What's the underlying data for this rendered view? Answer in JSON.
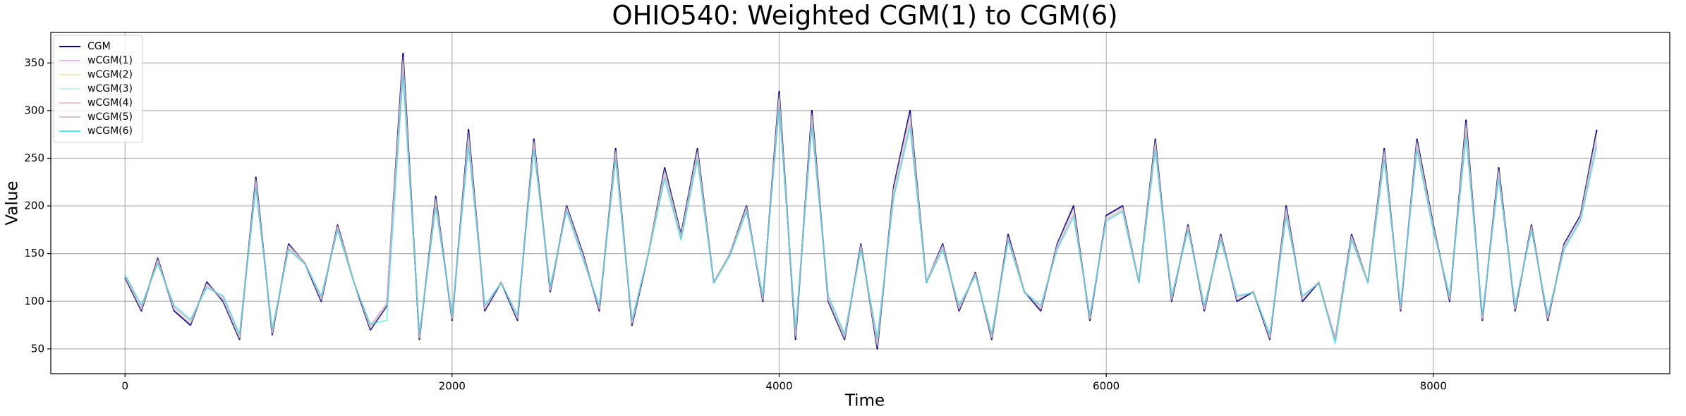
{
  "chart_data": {
    "type": "line",
    "title": "OHIO540: Weighted CGM(1) to CGM(6)",
    "xlabel": "Time",
    "ylabel": "Value",
    "x": [
      0,
      100,
      200,
      300,
      400,
      500,
      600,
      700,
      800,
      900,
      1000,
      1100,
      1200,
      1300,
      1400,
      1500,
      1600,
      1700,
      1800,
      1900,
      2000,
      2100,
      2200,
      2300,
      2400,
      2500,
      2600,
      2700,
      2800,
      2900,
      3000,
      3100,
      3200,
      3300,
      3400,
      3500,
      3600,
      3700,
      3800,
      3900,
      4000,
      4100,
      4200,
      4300,
      4400,
      4500,
      4600,
      4700,
      4800,
      4900,
      5000,
      5100,
      5200,
      5300,
      5400,
      5500,
      5600,
      5700,
      5800,
      5900,
      6000,
      6100,
      6200,
      6300,
      6400,
      6500,
      6600,
      6700,
      6800,
      6900,
      7000,
      7100,
      7200,
      7300,
      7400,
      7500,
      7600,
      7700,
      7800,
      7900,
      8000,
      8100,
      8200,
      8300,
      8400,
      8500,
      8600,
      8700,
      8800,
      8900,
      9000
    ],
    "series": [
      {
        "name": "CGM",
        "color": "#00008b",
        "values": [
          125,
          90,
          145,
          90,
          75,
          120,
          100,
          60,
          230,
          65,
          160,
          140,
          100,
          180,
          120,
          70,
          95,
          360,
          60,
          210,
          80,
          280,
          90,
          120,
          80,
          270,
          110,
          200,
          150,
          90,
          260,
          75,
          150,
          240,
          170,
          260,
          120,
          150,
          200,
          100,
          320,
          60,
          300,
          100,
          60,
          160,
          50,
          220,
          300,
          120,
          160,
          90,
          130,
          60,
          170,
          110,
          90,
          160,
          200,
          80,
          190,
          200,
          120,
          270,
          100,
          180,
          90,
          170,
          100,
          110,
          60,
          200,
          100,
          120,
          60,
          170,
          120,
          260,
          90,
          270,
          180,
          100,
          290,
          80,
          240,
          90,
          180,
          80,
          160,
          190,
          280
        ]
      },
      {
        "name": "wCGM(1)",
        "color": "#dda0dd",
        "values": [
          126,
          91,
          144,
          91,
          76,
          119,
          101,
          61,
          228,
          66,
          159,
          141,
          101,
          179,
          121,
          71,
          96,
          356,
          61,
          208,
          81,
          277,
          91,
          121,
          81,
          268,
          111,
          199,
          149,
          91,
          258,
          76,
          151,
          238,
          169,
          258,
          121,
          150,
          199,
          101,
          317,
          62,
          297,
          101,
          61,
          159,
          52,
          218,
          297,
          121,
          159,
          91,
          129,
          61,
          168,
          111,
          91,
          159,
          198,
          81,
          189,
          199,
          121,
          268,
          101,
          179,
          91,
          169,
          101,
          111,
          61,
          198,
          101,
          121,
          61,
          169,
          121,
          258,
          91,
          268,
          179,
          101,
          287,
          81,
          238,
          91,
          179,
          81,
          159,
          189,
          277
        ]
      },
      {
        "name": "wCGM(2)",
        "color": "#f0e68c",
        "values": [
          126,
          92,
          143,
          92,
          77,
          118,
          102,
          62,
          226,
          67,
          158,
          141,
          102,
          178,
          121,
          72,
          96,
          352,
          62,
          206,
          82,
          274,
          92,
          121,
          82,
          266,
          112,
          198,
          148,
          92,
          256,
          77,
          151,
          236,
          168,
          256,
          121,
          150,
          198,
          102,
          314,
          64,
          294,
          102,
          62,
          158,
          54,
          216,
          294,
          121,
          158,
          92,
          129,
          62,
          167,
          111,
          92,
          158,
          196,
          82,
          188,
          198,
          121,
          266,
          102,
          178,
          92,
          168,
          102,
          111,
          62,
          196,
          102,
          121,
          62,
          168,
          121,
          256,
          92,
          266,
          178,
          102,
          284,
          82,
          236,
          92,
          178,
          82,
          158,
          188,
          274
        ]
      },
      {
        "name": "wCGM(3)",
        "color": "#afeeee",
        "values": [
          127,
          93,
          142,
          93,
          78,
          117,
          103,
          63,
          224,
          68,
          157,
          140,
          103,
          177,
          120,
          73,
          97,
          348,
          63,
          204,
          83,
          271,
          93,
          120,
          83,
          264,
          113,
          197,
          147,
          93,
          254,
          78,
          150,
          234,
          167,
          254,
          120,
          149,
          197,
          103,
          311,
          66,
          291,
          103,
          63,
          157,
          56,
          214,
          291,
          120,
          157,
          93,
          128,
          63,
          166,
          110,
          93,
          157,
          194,
          83,
          187,
          197,
          120,
          264,
          103,
          177,
          93,
          167,
          103,
          110,
          63,
          194,
          103,
          120,
          58,
          167,
          120,
          254,
          93,
          264,
          177,
          103,
          281,
          83,
          234,
          93,
          177,
          83,
          157,
          187,
          271
        ]
      },
      {
        "name": "wCGM(4)",
        "color": "#f4a6b4",
        "values": [
          127,
          94,
          141,
          94,
          79,
          116,
          104,
          64,
          222,
          69,
          156,
          140,
          104,
          176,
          120,
          74,
          97,
          344,
          64,
          202,
          84,
          268,
          94,
          120,
          84,
          262,
          114,
          196,
          146,
          94,
          252,
          79,
          150,
          232,
          166,
          252,
          120,
          149,
          196,
          104,
          308,
          68,
          288,
          104,
          64,
          156,
          58,
          212,
          288,
          120,
          156,
          94,
          128,
          64,
          165,
          110,
          94,
          156,
          192,
          84,
          186,
          196,
          120,
          262,
          104,
          176,
          94,
          166,
          104,
          110,
          64,
          192,
          104,
          120,
          60,
          166,
          120,
          252,
          94,
          262,
          176,
          104,
          278,
          84,
          232,
          94,
          176,
          84,
          156,
          186,
          268
        ]
      },
      {
        "name": "wCGM(5)",
        "color": "#c8a2c8",
        "values": [
          128,
          95,
          140,
          95,
          80,
          115,
          105,
          65,
          220,
          70,
          155,
          139,
          105,
          175,
          119,
          75,
          98,
          340,
          65,
          200,
          85,
          265,
          95,
          119,
          85,
          260,
          115,
          195,
          145,
          95,
          250,
          80,
          149,
          230,
          165,
          250,
          119,
          148,
          195,
          105,
          305,
          70,
          285,
          105,
          65,
          155,
          60,
          210,
          285,
          119,
          155,
          95,
          127,
          65,
          164,
          109,
          95,
          155,
          190,
          85,
          185,
          195,
          119,
          260,
          105,
          175,
          95,
          165,
          105,
          109,
          65,
          190,
          105,
          119,
          62,
          165,
          119,
          250,
          95,
          260,
          175,
          105,
          275,
          85,
          230,
          95,
          175,
          85,
          155,
          185,
          265
        ]
      },
      {
        "name": "wCGM(6)",
        "color": "#00e5ee",
        "values": [
          128,
          96,
          139,
          96,
          81,
          114,
          106,
          66,
          218,
          71,
          154,
          139,
          106,
          174,
          119,
          76,
          80,
          336,
          66,
          198,
          86,
          262,
          96,
          119,
          86,
          258,
          116,
          194,
          144,
          96,
          248,
          81,
          149,
          228,
          164,
          248,
          119,
          148,
          194,
          106,
          302,
          72,
          282,
          106,
          66,
          154,
          62,
          208,
          282,
          119,
          154,
          96,
          127,
          66,
          163,
          109,
          96,
          154,
          188,
          86,
          184,
          194,
          119,
          258,
          106,
          174,
          96,
          164,
          106,
          109,
          66,
          188,
          106,
          119,
          55,
          164,
          119,
          248,
          96,
          258,
          174,
          106,
          272,
          86,
          228,
          96,
          174,
          86,
          154,
          184,
          262
        ]
      }
    ],
    "xlim": [
      -454,
      9446
    ],
    "ylim": [
      24,
      382
    ],
    "xticks": [
      0,
      2000,
      4000,
      6000,
      8000
    ],
    "yticks": [
      50,
      100,
      150,
      200,
      250,
      300,
      350
    ],
    "grid": true,
    "legend": "upper left"
  }
}
